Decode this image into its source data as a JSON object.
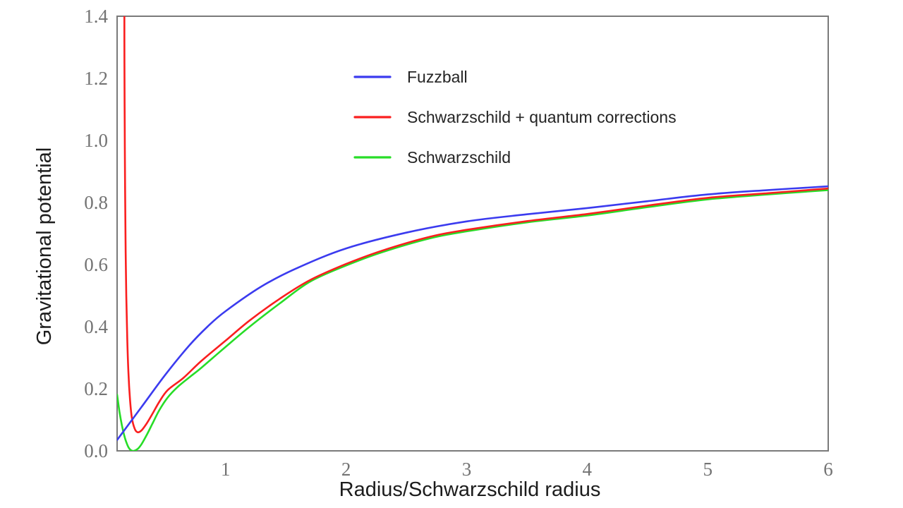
{
  "chart_data": {
    "type": "line",
    "title": "",
    "xlabel": "Radius/Schwarzschild radius",
    "ylabel": "Gravitational  potential",
    "xlim": [
      0.1,
      6.0
    ],
    "ylim": [
      0.0,
      1.4
    ],
    "grid": false,
    "frame": true,
    "legend_position": "upper-left-inside",
    "colors": {
      "frame": "#7a7a7a",
      "tick_label": "#737373",
      "axis_label": "#1c1c1c",
      "legend_label": "#242424",
      "background": "#ffffff"
    },
    "x_ticks": {
      "values": [
        1,
        2,
        3,
        4,
        5,
        6
      ],
      "labels": [
        "1",
        "2",
        "3",
        "4",
        "5",
        "6"
      ]
    },
    "y_ticks": {
      "values": [
        0.0,
        0.2,
        0.4,
        0.6,
        0.8,
        1.0,
        1.2,
        1.4
      ],
      "labels": [
        "0.0",
        "0.2",
        "0.4",
        "0.6",
        "0.8",
        "1.0",
        "1.2",
        "1.4"
      ]
    },
    "series": [
      {
        "name": "Fuzzball",
        "color": "#3b3bef",
        "points": [
          [
            0.1,
            0.035
          ],
          [
            0.3,
            0.14
          ],
          [
            0.5,
            0.245
          ],
          [
            0.7,
            0.34
          ],
          [
            0.85,
            0.4
          ],
          [
            1.0,
            0.45
          ],
          [
            1.3,
            0.53
          ],
          [
            1.6,
            0.59
          ],
          [
            2.0,
            0.652
          ],
          [
            2.5,
            0.703
          ],
          [
            3.0,
            0.739
          ],
          [
            3.5,
            0.762
          ],
          [
            4.0,
            0.782
          ],
          [
            4.5,
            0.804
          ],
          [
            5.0,
            0.826
          ],
          [
            5.5,
            0.84
          ],
          [
            6.0,
            0.852
          ]
        ]
      },
      {
        "name": "Schwarzschild + quantum corrections",
        "color": "#fa1f1f",
        "points": [
          [
            0.16,
            1.44
          ],
          [
            0.161,
            1.25
          ],
          [
            0.163,
            1.05
          ],
          [
            0.166,
            0.85
          ],
          [
            0.17,
            0.67
          ],
          [
            0.176,
            0.5
          ],
          [
            0.184,
            0.36
          ],
          [
            0.194,
            0.25
          ],
          [
            0.207,
            0.165
          ],
          [
            0.222,
            0.108
          ],
          [
            0.245,
            0.072
          ],
          [
            0.27,
            0.06
          ],
          [
            0.3,
            0.065
          ],
          [
            0.34,
            0.085
          ],
          [
            0.39,
            0.117
          ],
          [
            0.45,
            0.158
          ],
          [
            0.52,
            0.196
          ],
          [
            0.65,
            0.235
          ],
          [
            0.8,
            0.29
          ],
          [
            1.0,
            0.355
          ],
          [
            1.2,
            0.42
          ],
          [
            1.45,
            0.49
          ],
          [
            1.7,
            0.55
          ],
          [
            2.0,
            0.602
          ],
          [
            2.3,
            0.645
          ],
          [
            2.7,
            0.69
          ],
          [
            3.0,
            0.712
          ],
          [
            3.5,
            0.74
          ],
          [
            4.0,
            0.763
          ],
          [
            4.5,
            0.79
          ],
          [
            5.0,
            0.815
          ],
          [
            5.5,
            0.83
          ],
          [
            6.0,
            0.845
          ]
        ]
      },
      {
        "name": "Schwarzschild",
        "color": "#27dd27",
        "points": [
          [
            0.1,
            0.181
          ],
          [
            0.12,
            0.125
          ],
          [
            0.14,
            0.082
          ],
          [
            0.16,
            0.048
          ],
          [
            0.18,
            0.024
          ],
          [
            0.2,
            0.008
          ],
          [
            0.22,
            0.001
          ],
          [
            0.24,
            0.0
          ],
          [
            0.27,
            0.006
          ],
          [
            0.3,
            0.02
          ],
          [
            0.34,
            0.047
          ],
          [
            0.39,
            0.085
          ],
          [
            0.45,
            0.131
          ],
          [
            0.52,
            0.172
          ],
          [
            0.6,
            0.205
          ],
          [
            0.7,
            0.237
          ],
          [
            0.8,
            0.268
          ],
          [
            1.0,
            0.335
          ],
          [
            1.2,
            0.4
          ],
          [
            1.45,
            0.475
          ],
          [
            1.7,
            0.545
          ],
          [
            2.0,
            0.597
          ],
          [
            2.3,
            0.64
          ],
          [
            2.7,
            0.685
          ],
          [
            3.0,
            0.707
          ],
          [
            3.5,
            0.736
          ],
          [
            4.0,
            0.758
          ],
          [
            4.5,
            0.785
          ],
          [
            5.0,
            0.81
          ],
          [
            5.5,
            0.826
          ],
          [
            6.0,
            0.84
          ]
        ]
      }
    ]
  }
}
